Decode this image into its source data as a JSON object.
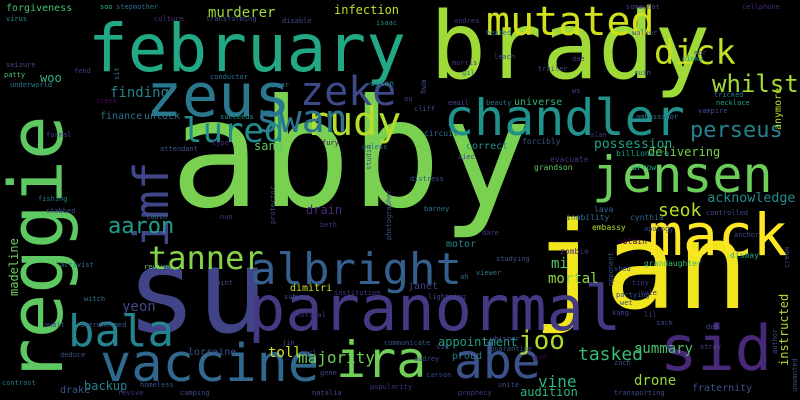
{
  "words": [
    {
      "text": "abby",
      "color": "#7ad151"
    },
    {
      "text": "brady",
      "color": "#a0da39"
    },
    {
      "text": "jan",
      "color": "#f1e51d"
    },
    {
      "text": "reggie",
      "color": "#5ec962"
    },
    {
      "text": "su",
      "color": "#414487"
    },
    {
      "text": "february",
      "color": "#22a884"
    },
    {
      "text": "paranormal",
      "color": "#443983"
    },
    {
      "text": "vaccine",
      "color": "#31688e"
    },
    {
      "text": "mack",
      "color": "#fde725"
    },
    {
      "text": "zeus",
      "color": "#2a788e"
    },
    {
      "text": "ira",
      "color": "#70cf57"
    },
    {
      "text": "abe",
      "color": "#3b528b"
    },
    {
      "text": "sid",
      "color": "#482878"
    },
    {
      "text": "jensen",
      "color": "#6ccd5a"
    },
    {
      "text": "chandler",
      "color": "#21918c"
    },
    {
      "text": "albright",
      "color": "#355f8d"
    },
    {
      "text": "mutated",
      "color": "#d0e11c"
    },
    {
      "text": "imf",
      "color": "#404688"
    },
    {
      "text": "bala",
      "color": "#25858e"
    },
    {
      "text": "rudy",
      "color": "#b5de2b"
    },
    {
      "text": "zeke",
      "color": "#3e4989"
    },
    {
      "text": "swan",
      "color": "#2c728e"
    },
    {
      "text": "lured",
      "color": "#228c8d"
    },
    {
      "text": "tanner",
      "color": "#86d549"
    },
    {
      "text": "dick",
      "color": "#c2df23"
    },
    {
      "text": "perseus",
      "color": "#26818e"
    },
    {
      "text": "aaron",
      "color": "#1f9e89"
    },
    {
      "text": "whilst",
      "color": "#a5db36"
    },
    {
      "text": "joo",
      "color": "#addc30"
    },
    {
      "text": "majority",
      "color": "#6ece58"
    },
    {
      "text": "tasked",
      "color": "#3aba76"
    },
    {
      "text": "seok",
      "color": "#b8de29"
    },
    {
      "text": "vine",
      "color": "#2db27d"
    },
    {
      "text": "summary",
      "color": "#4ac16d"
    },
    {
      "text": "acknowledge",
      "color": "#228d8d"
    },
    {
      "text": "finding",
      "color": "#277f8e"
    },
    {
      "text": "woo",
      "color": "#2fb47c"
    },
    {
      "text": "murderer",
      "color": "#9bd93c"
    },
    {
      "text": "infection",
      "color": "#c0df25"
    },
    {
      "text": "sang",
      "color": "#5cc863"
    },
    {
      "text": "drain",
      "color": "#472c7a"
    },
    {
      "text": "yeon",
      "color": "#3f4788"
    },
    {
      "text": "madeline",
      "color": "#6ccd5a"
    },
    {
      "text": "instructed",
      "color": "#a8db34"
    },
    {
      "text": "possession",
      "color": "#20a386"
    },
    {
      "text": "delivering",
      "color": "#7ad151"
    },
    {
      "text": "appointment",
      "color": "#1fa088"
    },
    {
      "text": "toll",
      "color": "#d8e219"
    },
    {
      "text": "mortal",
      "color": "#8ed645"
    },
    {
      "text": "backup",
      "color": "#26828e"
    },
    {
      "text": "drone",
      "color": "#93d741"
    },
    {
      "text": "audition",
      "color": "#31b57b"
    },
    {
      "text": "universe",
      "color": "#37b878"
    },
    {
      "text": "forgiveness",
      "color": "#48c16e"
    },
    {
      "text": "anymore",
      "color": "#b5de2b"
    },
    {
      "text": "mi",
      "color": "#52c569"
    },
    {
      "text": "lorraine",
      "color": "#3c508b"
    },
    {
      "text": "dimitri",
      "color": "#c8e020"
    },
    {
      "text": "janet",
      "color": "#414487"
    },
    {
      "text": "motor",
      "color": "#24878e"
    },
    {
      "text": "unlock",
      "color": "#2c738e"
    },
    {
      "text": "finance",
      "color": "#2a768e"
    },
    {
      "text": "correct",
      "color": "#1f948c"
    },
    {
      "text": "circuit",
      "color": "#2e6f8e"
    },
    {
      "text": "forcibly",
      "color": "#3b528b"
    },
    {
      "text": "evacuate",
      "color": "#46327e"
    },
    {
      "text": "grandson",
      "color": "#5ec962"
    },
    {
      "text": "dismay",
      "color": "#21a685"
    },
    {
      "text": "arrow",
      "color": "#22a884"
    },
    {
      "text": "lava",
      "color": "#33638d"
    },
    {
      "text": "inability",
      "color": "#2d708e"
    },
    {
      "text": "billionaire",
      "color": "#1f9e89"
    },
    {
      "text": "embassy",
      "color": "#addc30"
    },
    {
      "text": "grandaughter",
      "color": "#3dbc74"
    },
    {
      "text": "cynthia",
      "color": "#31688e"
    },
    {
      "text": "obtain",
      "color": "#440154"
    },
    {
      "text": "zombie",
      "color": "#472d7b"
    },
    {
      "text": "stepmother",
      "color": "#2c728e"
    },
    {
      "text": "soo",
      "color": "#25ac82"
    },
    {
      "text": "culture",
      "color": "#453781"
    },
    {
      "text": "transforming",
      "color": "#3e4989"
    },
    {
      "text": "disable",
      "color": "#3f4788"
    },
    {
      "text": "isaac",
      "color": "#24878e"
    },
    {
      "text": "heated",
      "color": "#2c738e"
    },
    {
      "text": "andrea",
      "color": "#46337f"
    },
    {
      "text": "somewhat",
      "color": "#404688"
    },
    {
      "text": "walker",
      "color": "#3b528b"
    },
    {
      "text": "cellphone",
      "color": "#482878"
    },
    {
      "text": "virus",
      "color": "#20928c"
    },
    {
      "text": "patty",
      "color": "#48c16e"
    },
    {
      "text": "underworld",
      "color": "#2a788e"
    },
    {
      "text": "seizure",
      "color": "#3e4a89"
    },
    {
      "text": "fend",
      "color": "#443a83"
    },
    {
      "text": "creek",
      "color": "#46085c"
    },
    {
      "text": "conductor",
      "color": "#2a768e"
    },
    {
      "text": "spear",
      "color": "#2b748e"
    },
    {
      "text": "dylan",
      "color": "#26828e"
    },
    {
      "text": "morris",
      "color": "#453882"
    },
    {
      "text": "gil",
      "color": "#2d708e"
    },
    {
      "text": "leach",
      "color": "#404588"
    },
    {
      "text": "trailer",
      "color": "#3d4e8a"
    },
    {
      "text": "dae",
      "color": "#46337f"
    },
    {
      "text": "ruin",
      "color": "#30698e"
    },
    {
      "text": "nicky",
      "color": "#1f998a"
    },
    {
      "text": "tricked",
      "color": "#2c738e"
    },
    {
      "text": "necklace",
      "color": "#1f9e89"
    },
    {
      "text": "vampire",
      "color": "#3c4f8a"
    },
    {
      "text": "ambassador",
      "color": "#2b758e"
    },
    {
      "text": "succeeds",
      "color": "#1f9a8a"
    },
    {
      "text": "attendant",
      "color": "#3b528b"
    },
    {
      "text": "type",
      "color": "#472f7d"
    },
    {
      "text": "fury",
      "color": "#440154"
    },
    {
      "text": "unless",
      "color": "#2c728e"
    },
    {
      "text": "studio",
      "color": "#3f4889"
    },
    {
      "text": "distress",
      "color": "#3b528b"
    },
    {
      "text": "aiec",
      "color": "#404688"
    },
    {
      "text": "cliff",
      "color": "#3a538b"
    },
    {
      "text": "email",
      "color": "#404588"
    },
    {
      "text": "beauty",
      "color": "#2c738e"
    },
    {
      "text": "alan",
      "color": "#46337f"
    },
    {
      "text": "photographer",
      "color": "#3b528b"
    },
    {
      "text": "barney",
      "color": "#2a768e"
    },
    {
      "text": "protector",
      "color": "#3e4989"
    },
    {
      "text": "beth",
      "color": "#472d7b"
    },
    {
      "text": "fishing",
      "color": "#2a788e"
    },
    {
      "text": "stabbed",
      "color": "#3e4989"
    },
    {
      "text": "tooth",
      "color": "#2d708e"
    },
    {
      "text": "nun",
      "color": "#46327e"
    },
    {
      "text": "activist",
      "color": "#2c728e"
    },
    {
      "text": "revives",
      "color": "#5cc863"
    },
    {
      "text": "joint",
      "color": "#3f4889"
    },
    {
      "text": "subway",
      "color": "#3b528b"
    },
    {
      "text": "institution",
      "color": "#443983"
    },
    {
      "text": "lightning",
      "color": "#404688"
    },
    {
      "text": "viewer",
      "color": "#2a788e"
    },
    {
      "text": "studying",
      "color": "#3b528b"
    },
    {
      "text": "dare",
      "color": "#433e85"
    },
    {
      "text": "apology",
      "color": "#3e4989"
    },
    {
      "text": "controlled",
      "color": "#404688"
    },
    {
      "text": "partying",
      "color": "#3b528b"
    },
    {
      "text": "tiny",
      "color": "#46327e"
    },
    {
      "text": "rule",
      "color": "#482878"
    },
    {
      "text": "opponent",
      "color": "#3c4f8a"
    },
    {
      "text": "witch",
      "color": "#2a788e"
    },
    {
      "text": "await",
      "color": "#3e4989"
    },
    {
      "text": "overwhelmed",
      "color": "#3b528b"
    },
    {
      "text": "festival",
      "color": "#46337f"
    },
    {
      "text": "communicate",
      "color": "#3b528b"
    },
    {
      "text": "whisper",
      "color": "#3e4a89"
    },
    {
      "text": "quarantine",
      "color": "#3b528b"
    },
    {
      "text": "god",
      "color": "#440154"
    },
    {
      "text": "zach",
      "color": "#3b528b"
    },
    {
      "text": "wet",
      "color": "#3e4989"
    },
    {
      "text": "kang",
      "color": "#404688"
    },
    {
      "text": "sack",
      "color": "#404688"
    },
    {
      "text": "lil",
      "color": "#414487"
    },
    {
      "text": "dos",
      "color": "#3b528b"
    },
    {
      "text": "stray",
      "color": "#404688"
    },
    {
      "text": "author",
      "color": "#3e4989"
    },
    {
      "text": "cream",
      "color": "#3e4989"
    },
    {
      "text": "unwanted",
      "color": "#3c4f8a"
    },
    {
      "text": "deduce",
      "color": "#3b528b"
    },
    {
      "text": "contrast",
      "color": "#2c728e"
    },
    {
      "text": "drake",
      "color": "#38598c"
    },
    {
      "text": "revive",
      "color": "#46337f"
    },
    {
      "text": "homeless",
      "color": "#3b528b"
    },
    {
      "text": "camping",
      "color": "#3e4989"
    },
    {
      "text": "earl",
      "color": "#404688"
    },
    {
      "text": "jin",
      "color": "#414487"
    },
    {
      "text": "carson",
      "color": "#3e4989"
    },
    {
      "text": "audrey",
      "color": "#404688"
    },
    {
      "text": "popularity",
      "color": "#46327e"
    },
    {
      "text": "proud",
      "color": "#2a788e"
    },
    {
      "text": "prophecy",
      "color": "#443983"
    },
    {
      "text": "unite",
      "color": "#3e4989"
    },
    {
      "text": "transporting",
      "color": "#3e4989"
    },
    {
      "text": "fraternity",
      "color": "#3b528b"
    },
    {
      "text": "shed",
      "color": "#3e4989"
    },
    {
      "text": "ah",
      "color": "#2c728e"
    },
    {
      "text": "hwa",
      "color": "#3e4989"
    },
    {
      "text": "ou",
      "color": "#3e4989"
    },
    {
      "text": "ws",
      "color": "#404688"
    },
    {
      "text": "gene",
      "color": "#404688"
    },
    {
      "text": "natalia",
      "color": "#3e4989"
    },
    {
      "text": "sim",
      "color": "#404688"
    },
    {
      "text": "sit",
      "color": "#2a788e"
    },
    {
      "text": "formal",
      "color": "#3e4989"
    },
    {
      "text": "anchor",
      "color": "#3e4989"
    },
    {
      "text": "nor",
      "color": "#404688"
    }
  ]
}
